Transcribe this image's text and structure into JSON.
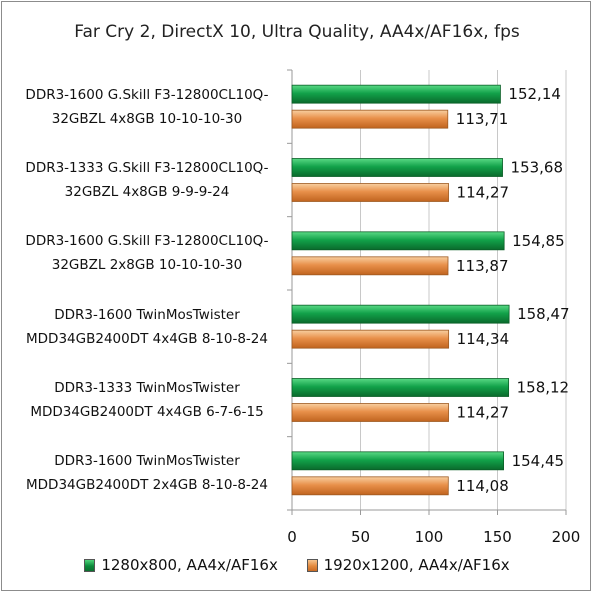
{
  "chart_data": {
    "type": "bar",
    "orientation": "horizontal",
    "title": "Far Cry 2, DirectX 10, Ultra Quality, AA4x/AF16x, fps",
    "categories": [
      [
        "DDR3-1600 G.Skill F3-12800CL10Q-",
        "32GBZL 4x8GB 10-10-10-30"
      ],
      [
        "DDR3-1333 G.Skill F3-12800CL10Q-",
        "32GBZL 4x8GB 9-9-9-24"
      ],
      [
        "DDR3-1600 G.Skill F3-12800CL10Q-",
        "32GBZL 2x8GB 10-10-10-30"
      ],
      [
        "DDR3-1600 TwinMosTwister",
        "MDD34GB2400DT 4x4GB 8-10-8-24"
      ],
      [
        "DDR3-1333 TwinMosTwister",
        "MDD34GB2400DT 4x4GB 6-7-6-15"
      ],
      [
        "DDR3-1600 TwinMosTwister",
        "MDD34GB2400DT 2x4GB 8-10-8-24"
      ]
    ],
    "series": [
      {
        "name": "1280x800, AA4x/AF16x",
        "color": "#0a8a3a",
        "values": [
          152.14,
          153.68,
          154.85,
          158.47,
          158.12,
          154.45
        ],
        "labels": [
          "152,14",
          "153,68",
          "154,85",
          "158,47",
          "158,12",
          "154,45"
        ]
      },
      {
        "name": "1920x1200, AA4x/AF16x",
        "color": "#e38a3f",
        "values": [
          113.71,
          114.27,
          113.87,
          114.34,
          114.27,
          114.08
        ],
        "labels": [
          "113,71",
          "114,27",
          "113,87",
          "114,34",
          "114,27",
          "114,08"
        ]
      }
    ],
    "xlim": [
      0,
      200
    ],
    "xticks": [
      0,
      50,
      100,
      150,
      200
    ],
    "grid": true,
    "legend_position": "bottom"
  }
}
